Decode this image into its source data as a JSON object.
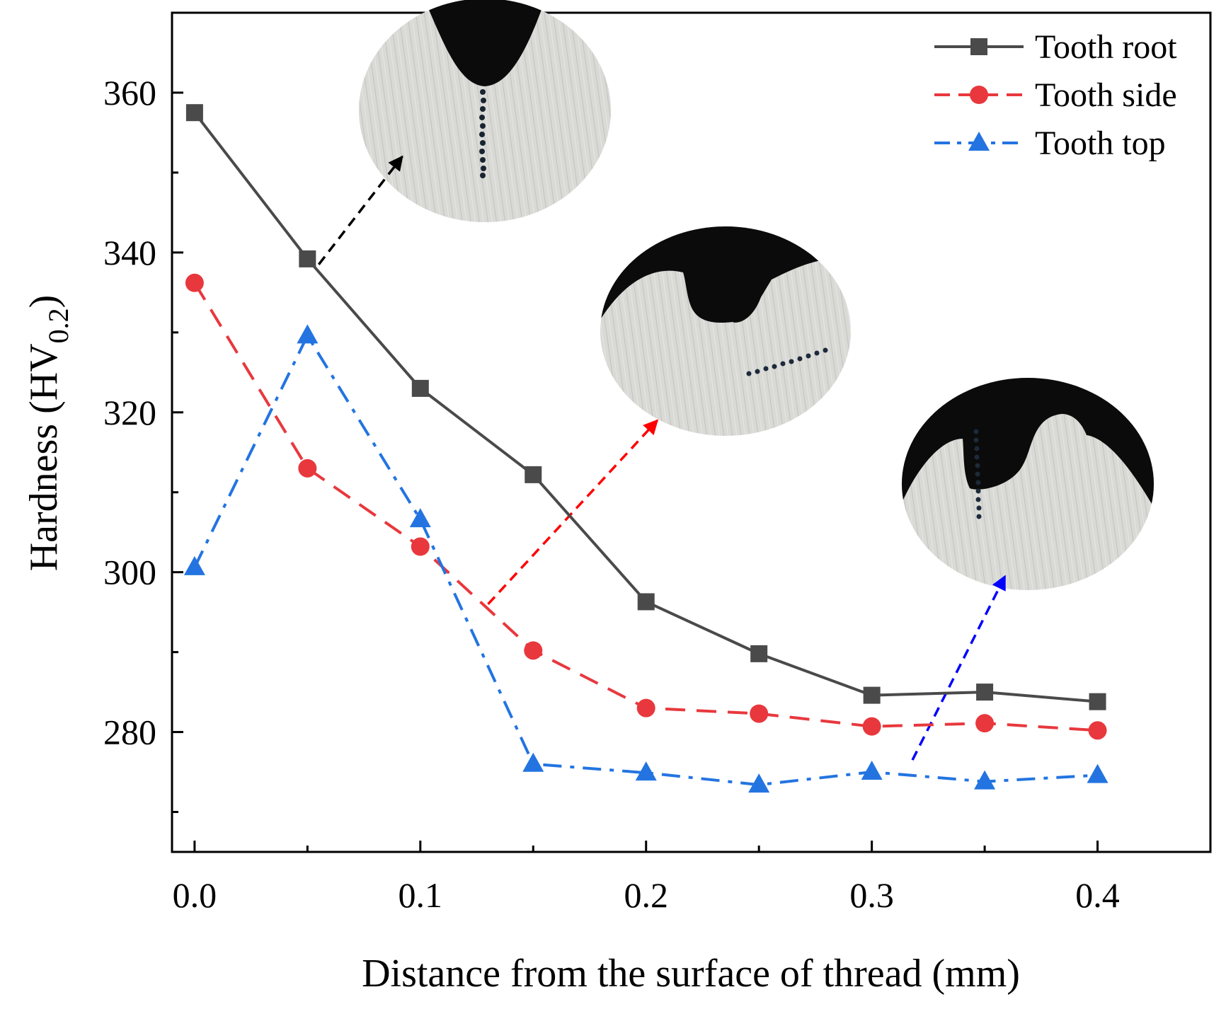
{
  "chart_data": {
    "type": "line",
    "title": "",
    "xlabel": "Distance from the surface of thread (mm)",
    "ylabel": {
      "main": "Hardness (HV",
      "sub": "0.2",
      "close": ")"
    },
    "x": [
      0.0,
      0.05,
      0.1,
      0.15,
      0.2,
      0.25,
      0.3,
      0.35,
      0.4
    ],
    "xlim": [
      -0.01,
      0.45
    ],
    "ylim": [
      265,
      370
    ],
    "xticks": [
      "0.0",
      "0.1",
      "0.2",
      "0.3",
      "0.4"
    ],
    "xtick_values": [
      0.0,
      0.1,
      0.2,
      0.3,
      0.4
    ],
    "yticks": [
      "280",
      "300",
      "320",
      "340",
      "360"
    ],
    "ytick_values": [
      280,
      300,
      320,
      340,
      360
    ],
    "series": [
      {
        "name": "Tooth root",
        "marker": "square",
        "dash": "solid",
        "color": "#4a4a4a",
        "values": [
          357.5,
          339.2,
          323.0,
          312.2,
          296.3,
          289.8,
          284.6,
          285.0,
          283.8
        ]
      },
      {
        "name": "Tooth side",
        "marker": "circle",
        "dash": "dash",
        "color": "#e8383d",
        "values": [
          336.2,
          313.0,
          303.2,
          290.2,
          283.0,
          282.3,
          280.7,
          281.1,
          280.2
        ]
      },
      {
        "name": "Tooth top",
        "marker": "triangle",
        "dash": "dashdot",
        "color": "#2374e1",
        "values": [
          300.6,
          329.6,
          306.6,
          276.0,
          274.9,
          273.4,
          275.0,
          273.8,
          274.6
        ]
      }
    ],
    "legend": "top-right",
    "annotations": [
      {
        "name": "inset-tooth-root",
        "color": "#000000",
        "from": [
          0.055,
          338.5
        ],
        "to": [
          0.092,
          352
        ]
      },
      {
        "name": "inset-tooth-side",
        "color": "#ff0000",
        "from": [
          0.13,
          296
        ],
        "to": [
          0.205,
          319
        ]
      },
      {
        "name": "inset-tooth-top",
        "color": "#0000ff",
        "from": [
          0.318,
          276.5
        ],
        "to": [
          0.359,
          299.5
        ]
      }
    ]
  }
}
